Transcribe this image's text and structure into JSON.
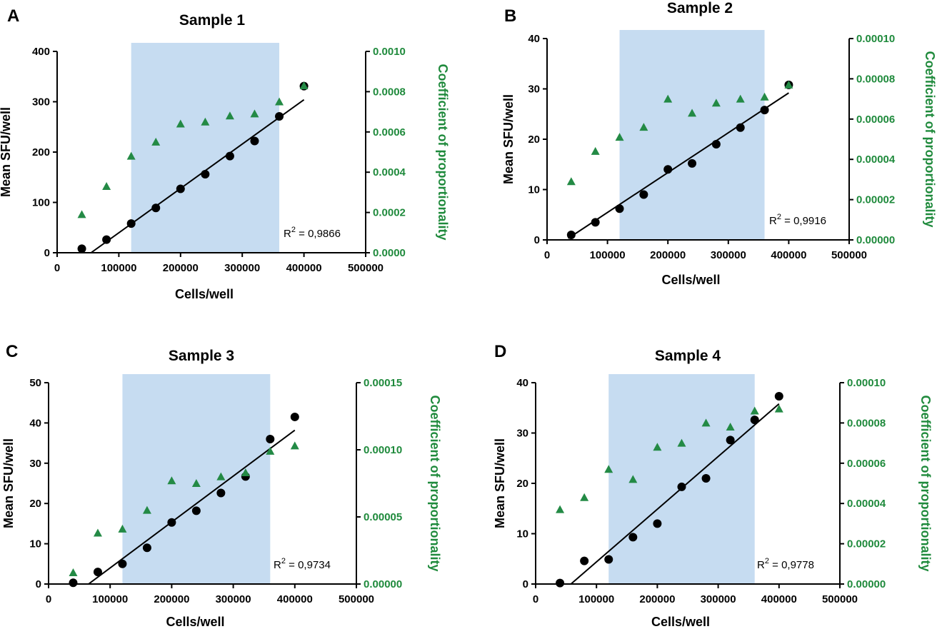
{
  "chart_data": [
    {
      "type": "scatter",
      "panel_label": "A",
      "title": "Sample 1",
      "xlabel": "Cells/well",
      "ylabel": "Mean SFU/well",
      "y2label": "Coefficient of proportionality",
      "xlim": [
        0,
        500000
      ],
      "ylim": [
        0,
        400
      ],
      "y2lim": [
        0,
        0.001
      ],
      "xticks": [
        "0",
        "100000",
        "200000",
        "300000",
        "400000",
        "500000"
      ],
      "yticks": [
        "0",
        "100",
        "200",
        "300",
        "400"
      ],
      "y2ticks": [
        "0.0000",
        "0.0002",
        "0.0004",
        "0.0006",
        "0.0008",
        "0.0010"
      ],
      "shaded_range": [
        120000,
        360000
      ],
      "r2_prefix": "R",
      "r2_sup": "2",
      "r2_value": " = 0,9866",
      "fit": [
        [
          55000,
          0
        ],
        [
          400000,
          304
        ]
      ],
      "series": [
        {
          "name": "Mean SFU/well",
          "axis": "left",
          "marker": "circle",
          "x": [
            40000,
            80000,
            120000,
            160000,
            200000,
            240000,
            280000,
            320000,
            360000,
            400000
          ],
          "y": [
            8,
            26,
            58,
            89,
            127,
            156,
            192,
            222,
            271,
            331
          ]
        },
        {
          "name": "Coefficient of proportionality",
          "axis": "right",
          "marker": "triangle",
          "x": [
            40000,
            80000,
            120000,
            160000,
            200000,
            240000,
            280000,
            320000,
            360000,
            400000
          ],
          "y": [
            0.00019,
            0.00033,
            0.00048,
            0.00055,
            0.00064,
            0.00065,
            0.00068,
            0.00069,
            0.00075,
            0.00083
          ]
        }
      ]
    },
    {
      "type": "scatter",
      "panel_label": "B",
      "title": "Sample 2",
      "xlabel": "Cells/well",
      "ylabel": "Mean SFU/well",
      "y2label": "Coefficient of proportionality",
      "xlim": [
        0,
        500000
      ],
      "ylim": [
        0,
        40
      ],
      "y2lim": [
        0,
        0.0001
      ],
      "xticks": [
        "0",
        "100000",
        "200000",
        "300000",
        "400000",
        "500000"
      ],
      "yticks": [
        "0",
        "10",
        "20",
        "30",
        "40"
      ],
      "y2ticks": [
        "0.00000",
        "0.00002",
        "0.00004",
        "0.00006",
        "0.00008",
        "0.00010"
      ],
      "shaded_range": [
        120000,
        360000
      ],
      "r2_prefix": "R",
      "r2_sup": "2",
      "r2_value": " = 0,9916",
      "fit": [
        [
          35000,
          0.3
        ],
        [
          400000,
          29.2
        ]
      ],
      "series": [
        {
          "name": "Mean SFU/well",
          "axis": "left",
          "marker": "circle",
          "x": [
            40000,
            80000,
            120000,
            160000,
            200000,
            240000,
            280000,
            320000,
            360000,
            400000
          ],
          "y": [
            1.0,
            3.5,
            6.2,
            9.0,
            14.0,
            15.2,
            19.0,
            22.3,
            25.8,
            30.8
          ]
        },
        {
          "name": "Coefficient of proportionality",
          "axis": "right",
          "marker": "triangle",
          "x": [
            40000,
            80000,
            120000,
            160000,
            200000,
            240000,
            280000,
            320000,
            360000,
            400000
          ],
          "y": [
            2.9e-05,
            4.4e-05,
            5.1e-05,
            5.6e-05,
            7e-05,
            6.3e-05,
            6.8e-05,
            7e-05,
            7.1e-05,
            7.7e-05
          ]
        }
      ]
    },
    {
      "type": "scatter",
      "panel_label": "C",
      "title": "Sample 3",
      "xlabel": "Cells/well",
      "ylabel": "Mean SFU/well",
      "y2label": "Coefficient of proportionality",
      "xlim": [
        0,
        500000
      ],
      "ylim": [
        0,
        50
      ],
      "y2lim": [
        0,
        0.00015
      ],
      "xticks": [
        "0",
        "100000",
        "200000",
        "300000",
        "400000",
        "500000"
      ],
      "yticks": [
        "0",
        "10",
        "20",
        "30",
        "40",
        "50"
      ],
      "y2ticks": [
        "0.00000",
        "0.00005",
        "0.00010",
        "0.00015"
      ],
      "shaded_range": [
        120000,
        360000
      ],
      "r2_prefix": "R",
      "r2_sup": "2",
      "r2_value": " = 0,9734",
      "fit": [
        [
          65000,
          0
        ],
        [
          400000,
          38.2
        ]
      ],
      "series": [
        {
          "name": "Mean SFU/well",
          "axis": "left",
          "marker": "circle",
          "x": [
            40000,
            80000,
            120000,
            160000,
            200000,
            240000,
            280000,
            320000,
            360000,
            400000
          ],
          "y": [
            0.3,
            3.0,
            5.0,
            9.0,
            15.3,
            18.2,
            22.6,
            26.7,
            36.0,
            41.5
          ]
        },
        {
          "name": "Coefficient of proportionality",
          "axis": "right",
          "marker": "triangle",
          "x": [
            40000,
            80000,
            120000,
            160000,
            200000,
            240000,
            280000,
            320000,
            360000,
            400000
          ],
          "y": [
            8.5e-06,
            3.8e-05,
            4.1e-05,
            5.5e-05,
            7.7e-05,
            7.5e-05,
            8e-05,
            8.3e-05,
            9.9e-05,
            0.000103
          ]
        }
      ]
    },
    {
      "type": "scatter",
      "panel_label": "D",
      "title": "Sample 4",
      "xlabel": "Cells/well",
      "ylabel": "Mean SFU/well",
      "y2label": "Coefficient of proportionality",
      "xlim": [
        0,
        500000
      ],
      "ylim": [
        0,
        40
      ],
      "y2lim": [
        0,
        0.0001
      ],
      "xticks": [
        "0",
        "100000",
        "200000",
        "300000",
        "400000",
        "500000"
      ],
      "yticks": [
        "0",
        "10",
        "20",
        "30",
        "40"
      ],
      "y2ticks": [
        "0.00000",
        "0.00002",
        "0.00004",
        "0.00006",
        "0.00008",
        "0.00010"
      ],
      "shaded_range": [
        120000,
        360000
      ],
      "r2_prefix": "R",
      "r2_sup": "2",
      "r2_value": " = 0,9778",
      "fit": [
        [
          58000,
          0
        ],
        [
          400000,
          35.8
        ]
      ],
      "series": [
        {
          "name": "Mean SFU/well",
          "axis": "left",
          "marker": "circle",
          "x": [
            40000,
            80000,
            120000,
            160000,
            200000,
            240000,
            280000,
            320000,
            360000,
            400000
          ],
          "y": [
            0.2,
            4.6,
            4.9,
            9.3,
            12.0,
            19.3,
            21.0,
            28.6,
            32.6,
            37.3
          ]
        },
        {
          "name": "Coefficient of proportionality",
          "axis": "right",
          "marker": "triangle",
          "x": [
            40000,
            80000,
            120000,
            160000,
            200000,
            240000,
            280000,
            320000,
            360000,
            400000
          ],
          "y": [
            3.7e-05,
            4.3e-05,
            5.7e-05,
            5.2e-05,
            6.8e-05,
            7e-05,
            8e-05,
            7.8e-05,
            8.6e-05,
            8.7e-05
          ]
        }
      ]
    }
  ],
  "colors": {
    "shade": "#c6dcf1",
    "circle": "#000000",
    "triangle": "#238a45",
    "right_axis": "#1f8a3c"
  }
}
